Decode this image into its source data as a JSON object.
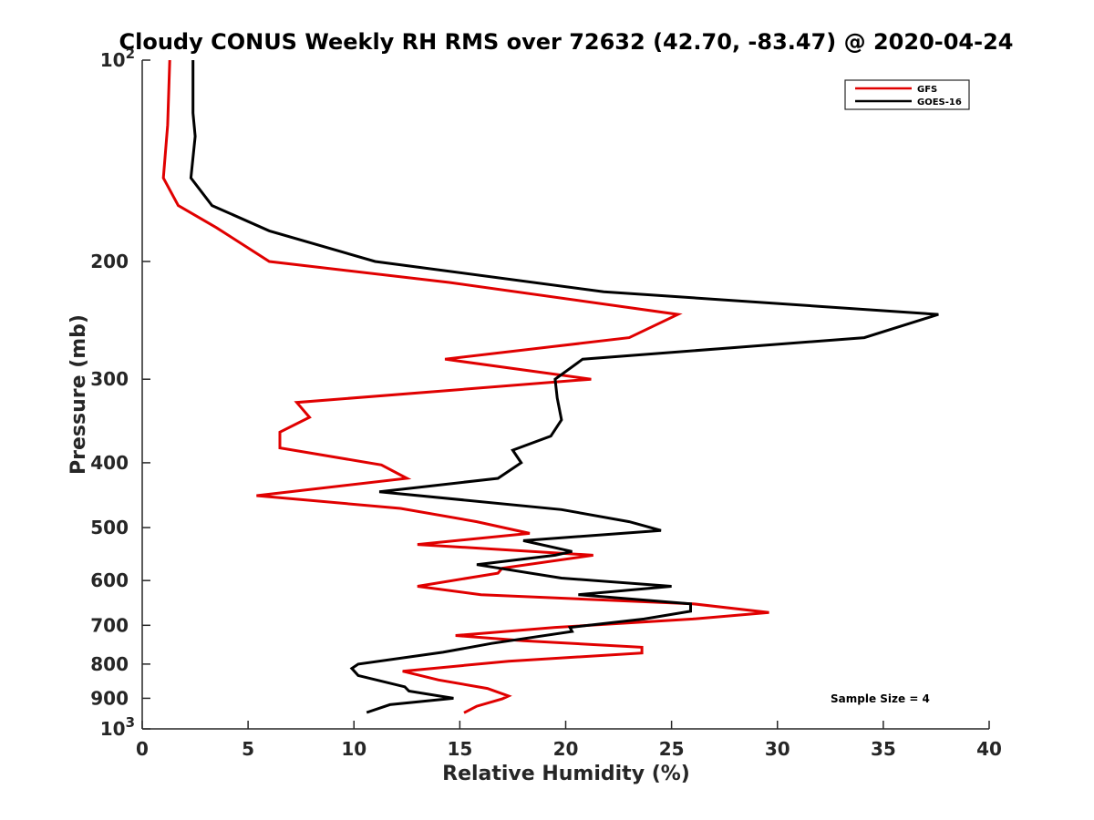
{
  "chart_data": {
    "type": "line",
    "title": "Cloudy CONUS Weekly RH RMS over 72632 (42.70, -83.47) @ 2020-04-24",
    "xlabel": "Relative Humidity (%)",
    "ylabel": "Pressure (mb)",
    "xlim": [
      0,
      40
    ],
    "ylim": [
      100,
      1000
    ],
    "y_scale": "log",
    "y_reversed": true,
    "x_ticks": [
      "0",
      "5",
      "10",
      "15",
      "20",
      "25",
      "30",
      "35",
      "40"
    ],
    "y_ticks": [
      {
        "value": 100,
        "label": "10",
        "sup": "2"
      },
      {
        "value": 200,
        "label": "200"
      },
      {
        "value": 300,
        "label": "300"
      },
      {
        "value": 400,
        "label": "400"
      },
      {
        "value": 500,
        "label": "500"
      },
      {
        "value": 600,
        "label": "600"
      },
      {
        "value": 700,
        "label": "700"
      },
      {
        "value": 800,
        "label": "800"
      },
      {
        "value": 900,
        "label": "900"
      },
      {
        "value": 1000,
        "label": "10",
        "sup": "3"
      }
    ],
    "grid": false,
    "legend_position": "top-right",
    "annotation": "Sample Size = 4",
    "series": [
      {
        "name": "GFS",
        "color": "#e00000",
        "points": [
          [
            1.3,
            100
          ],
          [
            1.2,
            125
          ],
          [
            1.0,
            150
          ],
          [
            1.7,
            165
          ],
          [
            3.5,
            178
          ],
          [
            6.0,
            200
          ],
          [
            14.5,
            215
          ],
          [
            25.3,
            240
          ],
          [
            23.0,
            260
          ],
          [
            14.3,
            280
          ],
          [
            21.2,
            300
          ],
          [
            7.3,
            325
          ],
          [
            7.9,
            342
          ],
          [
            6.5,
            360
          ],
          [
            6.5,
            380
          ],
          [
            11.3,
            403
          ],
          [
            12.5,
            422
          ],
          [
            5.4,
            448
          ],
          [
            12.2,
            468
          ],
          [
            15.8,
            490
          ],
          [
            18.3,
            510
          ],
          [
            13.0,
            530
          ],
          [
            21.3,
            550
          ],
          [
            17.0,
            575
          ],
          [
            16.8,
            585
          ],
          [
            13.0,
            612
          ],
          [
            16.0,
            630
          ],
          [
            26.0,
            650
          ],
          [
            29.6,
            670
          ],
          [
            26.0,
            685
          ],
          [
            19.5,
            705
          ],
          [
            14.8,
            725
          ],
          [
            18.0,
            738
          ],
          [
            23.6,
            755
          ],
          [
            23.6,
            770
          ],
          [
            17.3,
            792
          ],
          [
            12.3,
            820
          ],
          [
            14.0,
            845
          ],
          [
            16.3,
            870
          ],
          [
            17.3,
            893
          ],
          [
            17.0,
            902
          ],
          [
            15.8,
            925
          ],
          [
            15.2,
            946
          ]
        ]
      },
      {
        "name": "GOES-16",
        "color": "#000000",
        "points": [
          [
            2.4,
            100
          ],
          [
            2.4,
            120
          ],
          [
            2.5,
            130
          ],
          [
            2.3,
            150
          ],
          [
            3.3,
            165
          ],
          [
            6.0,
            180
          ],
          [
            11.0,
            200
          ],
          [
            21.8,
            222
          ],
          [
            37.6,
            240
          ],
          [
            34.1,
            260
          ],
          [
            20.8,
            280
          ],
          [
            19.5,
            300
          ],
          [
            19.6,
            320
          ],
          [
            19.8,
            345
          ],
          [
            19.3,
            365
          ],
          [
            17.5,
            383
          ],
          [
            17.9,
            400
          ],
          [
            16.8,
            422
          ],
          [
            11.2,
            442
          ],
          [
            19.8,
            470
          ],
          [
            23.0,
            490
          ],
          [
            24.5,
            505
          ],
          [
            18.0,
            523
          ],
          [
            20.3,
            543
          ],
          [
            19.5,
            550
          ],
          [
            15.8,
            568
          ],
          [
            19.8,
            595
          ],
          [
            25.0,
            612
          ],
          [
            20.6,
            630
          ],
          [
            25.9,
            650
          ],
          [
            25.9,
            667
          ],
          [
            23.7,
            685
          ],
          [
            20.2,
            705
          ],
          [
            20.3,
            715
          ],
          [
            16.5,
            745
          ],
          [
            14.2,
            768
          ],
          [
            10.2,
            800
          ],
          [
            9.9,
            812
          ],
          [
            10.2,
            832
          ],
          [
            12.4,
            865
          ],
          [
            12.6,
            878
          ],
          [
            14.7,
            900
          ],
          [
            11.7,
            920
          ],
          [
            10.6,
            945
          ]
        ]
      }
    ]
  }
}
